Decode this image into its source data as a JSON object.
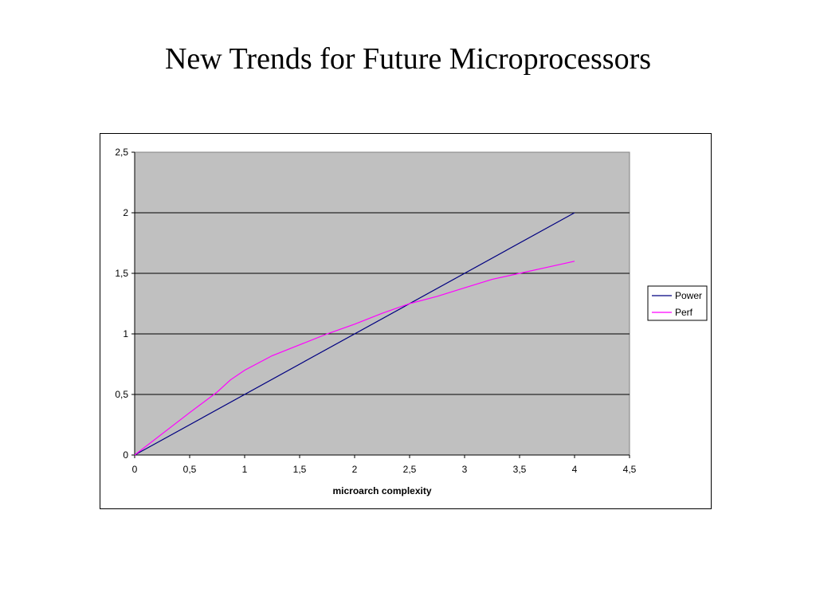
{
  "slide": {
    "title": "New Trends for Future Microprocessors"
  },
  "chart_data": {
    "type": "line",
    "title": "",
    "xlabel": "microarch complexity",
    "ylabel": "",
    "xlim": [
      0,
      4.5
    ],
    "ylim": [
      0,
      2.5
    ],
    "x_ticks": [
      0,
      0.5,
      1,
      1.5,
      2,
      2.5,
      3,
      3.5,
      4,
      4.5
    ],
    "x_tick_labels": [
      "0",
      "0,5",
      "1",
      "1,5",
      "2",
      "2,5",
      "3",
      "3,5",
      "4",
      "4,5"
    ],
    "y_ticks": [
      0,
      0.5,
      1,
      1.5,
      2,
      2.5
    ],
    "y_tick_labels": [
      "0",
      "0,5",
      "1",
      "1,5",
      "2",
      "2,5"
    ],
    "grid": "horizontal",
    "plot_background": "#c0c0c0",
    "legend_position": "right",
    "series": [
      {
        "name": "Power",
        "color": "#000080",
        "points": [
          [
            0,
            0
          ],
          [
            4,
            2
          ]
        ]
      },
      {
        "name": "Perf",
        "color": "#ff00ff",
        "points": [
          [
            0,
            0
          ],
          [
            0.5,
            0.35
          ],
          [
            0.75,
            0.52
          ],
          [
            0.87,
            0.62
          ],
          [
            1.0,
            0.7
          ],
          [
            1.25,
            0.82
          ],
          [
            1.5,
            0.91
          ],
          [
            1.75,
            1.0
          ],
          [
            2.0,
            1.08
          ],
          [
            2.25,
            1.17
          ],
          [
            2.5,
            1.25
          ],
          [
            2.75,
            1.31
          ],
          [
            3.0,
            1.38
          ],
          [
            3.25,
            1.45
          ],
          [
            3.5,
            1.5
          ],
          [
            3.75,
            1.55
          ],
          [
            4.0,
            1.6
          ]
        ]
      }
    ]
  }
}
